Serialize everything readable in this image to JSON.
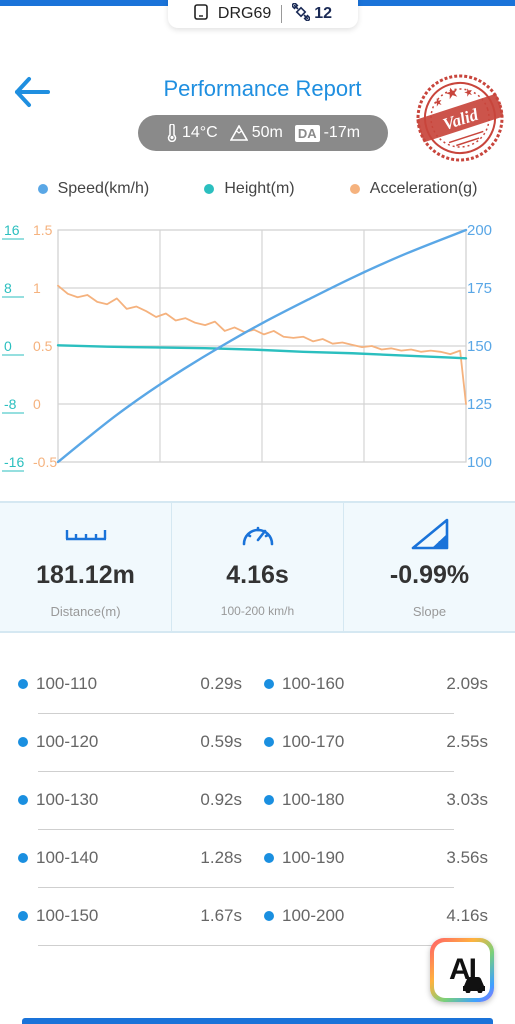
{
  "header": {
    "device_id": "DRG69",
    "satellites": "12",
    "title": "Performance Report",
    "stamp_text": "Valid"
  },
  "conditions": {
    "temperature": "14°C",
    "altitude": "50m",
    "da_label": "DA",
    "density_altitude": "-17m"
  },
  "legend": {
    "speed": "Speed(km/h)",
    "height": "Height(m)",
    "acceleration": "Acceleration(g)"
  },
  "colors": {
    "speed": "#5aa7e6",
    "height": "#2bbfbf",
    "acceleration": "#f5b27e",
    "accent": "#1f8fe0"
  },
  "chart_data": {
    "type": "line",
    "axes": {
      "height_ticks": [
        "16",
        "8",
        "0",
        "-8",
        "-16"
      ],
      "acceleration_ticks": [
        "1.5",
        "1",
        "0.5",
        "0",
        "-0.5"
      ],
      "speed_ticks": [
        "200",
        "175",
        "150",
        "125",
        "100"
      ],
      "height_range": [
        -16,
        16
      ],
      "acceleration_range": [
        -0.5,
        1.5
      ],
      "speed_range": [
        100,
        200
      ],
      "time_range": [
        0,
        4.16
      ],
      "grid": true
    },
    "series": [
      {
        "name": "Speed(km/h)",
        "axis": "right",
        "x": [
          0,
          0.29,
          0.59,
          0.92,
          1.28,
          1.67,
          2.09,
          2.55,
          3.03,
          3.56,
          4.16
        ],
        "values": [
          100,
          110,
          120,
          130,
          140,
          150,
          160,
          170,
          180,
          190,
          200
        ]
      },
      {
        "name": "Height(m)",
        "axis": "left",
        "x": [
          0,
          0.5,
          1.0,
          1.5,
          2.0,
          2.5,
          3.0,
          3.5,
          4.0,
          4.16
        ],
        "values": [
          0.1,
          -0.1,
          -0.2,
          -0.3,
          -0.5,
          -0.8,
          -1.0,
          -1.3,
          -1.6,
          -1.7
        ]
      },
      {
        "name": "Acceleration(g)",
        "axis": "left2",
        "x": [
          0,
          0.1,
          0.2,
          0.3,
          0.4,
          0.5,
          0.6,
          0.7,
          0.8,
          0.9,
          1.0,
          1.1,
          1.2,
          1.3,
          1.4,
          1.5,
          1.6,
          1.7,
          1.8,
          1.9,
          2.0,
          2.1,
          2.2,
          2.3,
          2.4,
          2.5,
          2.6,
          2.7,
          2.8,
          2.9,
          3.0,
          3.1,
          3.2,
          3.3,
          3.4,
          3.5,
          3.6,
          3.7,
          3.8,
          3.9,
          4.0,
          4.1,
          4.16
        ],
        "values": [
          1.02,
          0.95,
          0.92,
          0.94,
          0.88,
          0.86,
          0.91,
          0.82,
          0.84,
          0.8,
          0.75,
          0.78,
          0.72,
          0.74,
          0.7,
          0.68,
          0.71,
          0.63,
          0.66,
          0.62,
          0.64,
          0.6,
          0.63,
          0.58,
          0.57,
          0.58,
          0.54,
          0.56,
          0.52,
          0.53,
          0.51,
          0.49,
          0.5,
          0.47,
          0.48,
          0.46,
          0.47,
          0.45,
          0.46,
          0.45,
          0.43,
          0.46,
          0.0
        ]
      }
    ]
  },
  "stats": {
    "distance_value": "181.12m",
    "distance_label": "Distance(m)",
    "time_value": "4.16s",
    "time_label": "100-200 km/h",
    "slope_value": "-0.99%",
    "slope_label": "Slope"
  },
  "splits": [
    {
      "left_range": "100-110",
      "left_time": "0.29s",
      "right_range": "100-160",
      "right_time": "2.09s"
    },
    {
      "left_range": "100-120",
      "left_time": "0.59s",
      "right_range": "100-170",
      "right_time": "2.55s"
    },
    {
      "left_range": "100-130",
      "left_time": "0.92s",
      "right_range": "100-180",
      "right_time": "3.03s"
    },
    {
      "left_range": "100-140",
      "left_time": "1.28s",
      "right_range": "100-190",
      "right_time": "3.56s"
    },
    {
      "left_range": "100-150",
      "left_time": "1.67s",
      "right_range": "100-200",
      "right_time": "4.16s"
    }
  ],
  "ai_button": "AI"
}
